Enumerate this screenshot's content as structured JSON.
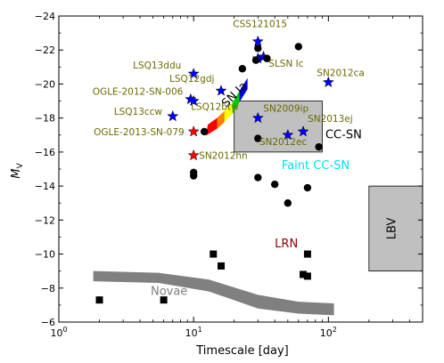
{
  "chart_data": {
    "type": "scatter",
    "title": "",
    "xlabel": "Timescale [day]",
    "ylabel": "M_V",
    "xscale": "log",
    "xlim": [
      1,
      500
    ],
    "ylim": [
      -24,
      -6
    ],
    "y_inverted": true,
    "grid": false,
    "x_ticks": [
      {
        "value": 1,
        "base": "10",
        "exp": "0"
      },
      {
        "value": 10,
        "base": "10",
        "exp": "1"
      },
      {
        "value": 100,
        "base": "10",
        "exp": "2"
      }
    ],
    "y_ticks": [
      {
        "value": -24,
        "label": "−24"
      },
      {
        "value": -22,
        "label": "−22"
      },
      {
        "value": -20,
        "label": "−20"
      },
      {
        "value": -18,
        "label": "−18"
      },
      {
        "value": -16,
        "label": "−16"
      },
      {
        "value": -14,
        "label": "−14"
      },
      {
        "value": -12,
        "label": "−12"
      },
      {
        "value": -10,
        "label": "−10"
      },
      {
        "value": -8,
        "label": "−8"
      },
      {
        "value": -6,
        "label": "−6"
      }
    ],
    "regions": [
      {
        "label": "CC-SN",
        "x_range": [
          20,
          90
        ],
        "y_range": [
          -19,
          -16
        ],
        "color": "#c0c0c0",
        "label_color": "#000000",
        "label_at": [
          95,
          -16.8
        ]
      },
      {
        "label": "LBV",
        "x_range": [
          200,
          500
        ],
        "y_range": [
          -14,
          -9
        ],
        "color": "#c0c0c0",
        "label_color": "#000000",
        "label_at": [
          315,
          -11.5
        ],
        "rotated": true
      }
    ],
    "region_labels": [
      {
        "label": "Faint CC-SN",
        "x": 45,
        "y": -15.0,
        "color": "#00e0f0"
      },
      {
        "label": "LRN",
        "x": 40,
        "y": -10.4,
        "color": "#8b0000"
      },
      {
        "label": "Novae",
        "x": 4.8,
        "y": -7.6,
        "color": "#808080"
      }
    ],
    "novae_band": {
      "color": "#808080",
      "upper": [
        [
          1.8,
          -9.0
        ],
        [
          5.5,
          -8.9
        ],
        [
          13,
          -8.5
        ],
        [
          30,
          -7.6
        ],
        [
          60,
          -7.2
        ],
        [
          110,
          -7.1
        ]
      ],
      "lower": [
        [
          1.8,
          -8.4
        ],
        [
          5.5,
          -8.3
        ],
        [
          13,
          -7.8
        ],
        [
          30,
          -6.8
        ],
        [
          60,
          -6.5
        ],
        [
          110,
          -6.4
        ]
      ]
    },
    "sn_ia": {
      "label": "SN Ia",
      "label_at": [
        17.5,
        -18.6
      ],
      "colors": [
        "#ff0000",
        "#ff7f00",
        "#ffff00",
        "#00cc00",
        "#0000ff"
      ],
      "upper": [
        [
          12.8,
          -17.6
        ],
        [
          15,
          -18.0
        ],
        [
          17,
          -18.4
        ],
        [
          19.5,
          -18.9
        ],
        [
          22,
          -19.6
        ],
        [
          25,
          -20.3
        ]
      ],
      "lower": [
        [
          12.4,
          -17.0
        ],
        [
          15,
          -17.4
        ],
        [
          17,
          -17.8
        ],
        [
          19.5,
          -18.3
        ],
        [
          22,
          -19.0
        ],
        [
          25,
          -19.7
        ]
      ]
    },
    "series": [
      {
        "marker": "star",
        "color": "#0000ff",
        "points": [
          {
            "label": "CSS121015",
            "x": 30,
            "y": -22.5
          },
          {
            "label": "",
            "x": 30,
            "y": -21.5
          },
          {
            "label": "",
            "x": 33,
            "y": -21.6
          },
          {
            "label": "LSQ13ddu",
            "x": 10,
            "y": -20.6
          },
          {
            "label": "SN2012ca",
            "x": 100,
            "y": -20.1
          },
          {
            "label": "LSQ12gdj",
            "x": 16,
            "y": -19.6
          },
          {
            "label": "OGLE-2012-SN-006",
            "x": 9.5,
            "y": -19.1
          },
          {
            "label": "LSQ12btw",
            "x": 10,
            "y": -19.0
          },
          {
            "label": "LSQ13ccw",
            "x": 7,
            "y": -18.1
          },
          {
            "label": "SN2009ip",
            "x": 30,
            "y": -18.0
          },
          {
            "label": "SN2013ej",
            "x": 65,
            "y": -17.2
          },
          {
            "label": "SN2012ec",
            "x": 50,
            "y": -17.0
          }
        ]
      },
      {
        "marker": "star",
        "color": "#ff0000",
        "points": [
          {
            "label": "OGLE-2013-SN-079",
            "x": 10,
            "y": -17.2
          },
          {
            "label": "SN2012hn",
            "x": 10,
            "y": -15.8
          }
        ]
      },
      {
        "marker": "circle",
        "color": "#000000",
        "points": [
          {
            "x": 30,
            "y": -22.1
          },
          {
            "x": 60,
            "y": -22.2
          },
          {
            "x": 29,
            "y": -21.4
          },
          {
            "x": 35,
            "y": -21.5
          },
          {
            "x": 23,
            "y": -20.9
          },
          {
            "x": 12,
            "y": -17.2
          },
          {
            "x": 30,
            "y": -16.8
          },
          {
            "x": 85,
            "y": -16.3
          },
          {
            "x": 10,
            "y": -14.8
          },
          {
            "x": 10,
            "y": -14.6
          },
          {
            "x": 30,
            "y": -14.5
          },
          {
            "x": 40,
            "y": -14.1
          },
          {
            "x": 70,
            "y": -13.9
          },
          {
            "x": 50,
            "y": -13.0
          }
        ]
      },
      {
        "marker": "square",
        "color": "#000000",
        "points": [
          {
            "x": 2,
            "y": -7.3
          },
          {
            "x": 6,
            "y": -7.3
          },
          {
            "x": 14,
            "y": -10.0
          },
          {
            "x": 16,
            "y": -9.3
          },
          {
            "x": 65,
            "y": -8.8
          },
          {
            "x": 70,
            "y": -8.7
          },
          {
            "x": 70,
            "y": -10.0
          }
        ]
      }
    ],
    "annotations": [
      {
        "label": "CSS121015",
        "x": 30,
        "y": -22.5,
        "dx": -28,
        "dy": -16,
        "color": "#6b6b00"
      },
      {
        "label": "SLSN Ic",
        "x": 30,
        "y": -21.5,
        "dx": 12,
        "dy": 9,
        "color": "#6b6b00"
      },
      {
        "label": "LSQ13ddu",
        "x": 10,
        "y": -20.6,
        "dx": -68,
        "dy": -6,
        "color": "#6b6b00"
      },
      {
        "label": "SN2012ca",
        "x": 100,
        "y": -20.1,
        "dx": -13,
        "dy": -7,
        "color": "#6b6b00"
      },
      {
        "label": "LSQ12gdj",
        "x": 16,
        "y": -19.6,
        "dx": -58,
        "dy": -10,
        "color": "#6b6b00"
      },
      {
        "label": "OGLE-2012-SN-006",
        "x": 9.5,
        "y": -19.1,
        "dx": -110,
        "dy": -5,
        "color": "#6b6b00"
      },
      {
        "label": "LSQ12btw",
        "x": 10,
        "y": -19.0,
        "dx": -3,
        "dy": 10,
        "color": "#6b6b00"
      },
      {
        "label": "LSQ13ccw",
        "x": 7,
        "y": -18.1,
        "dx": -66,
        "dy": -2,
        "color": "#6b6b00"
      },
      {
        "label": "SN2009ip",
        "x": 30,
        "y": -18.0,
        "dx": 6,
        "dy": -7,
        "color": "#6b6b00"
      },
      {
        "label": "SN2013ej",
        "x": 65,
        "y": -17.2,
        "dx": 5,
        "dy": -11,
        "color": "#6b6b00"
      },
      {
        "label": "SN2012ec",
        "x": 50,
        "y": -17.0,
        "dx": -32,
        "dy": 11,
        "color": "#6b6b00"
      },
      {
        "label": "OGLE-2013-SN-079",
        "x": 10,
        "y": -17.2,
        "dx": -112,
        "dy": 4,
        "color": "#6b6b00"
      },
      {
        "label": "SN2012hn",
        "x": 10,
        "y": -15.8,
        "dx": 6,
        "dy": 4,
        "color": "#6b6b00"
      }
    ]
  }
}
